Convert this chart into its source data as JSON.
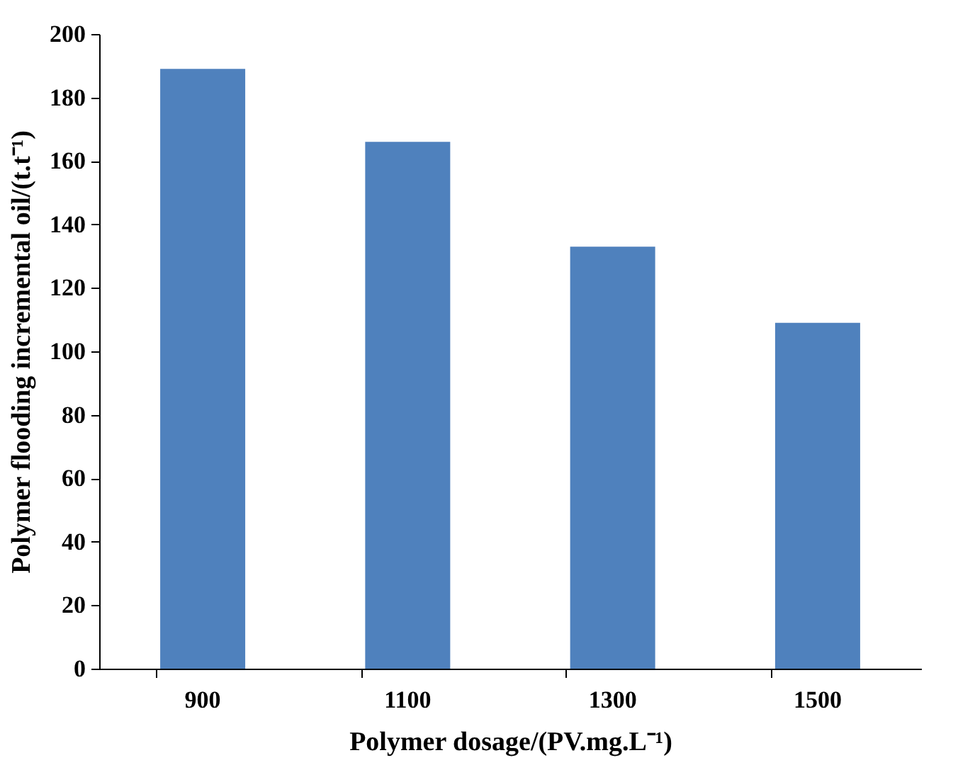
{
  "chart_data": {
    "type": "bar",
    "categories": [
      "900",
      "1100",
      "1300",
      "1500"
    ],
    "values": [
      189,
      166,
      133,
      109
    ],
    "color": "#4f81bd",
    "xlabel": "Polymer dosage/(PV.mg.L⁻¹)",
    "ylabel": "Polymer flooding incremental oil/(t.t⁻¹)",
    "ylim": [
      0,
      200
    ],
    "yticks": [
      0,
      20,
      40,
      60,
      80,
      100,
      120,
      140,
      160,
      180,
      200
    ],
    "grid": false
  }
}
